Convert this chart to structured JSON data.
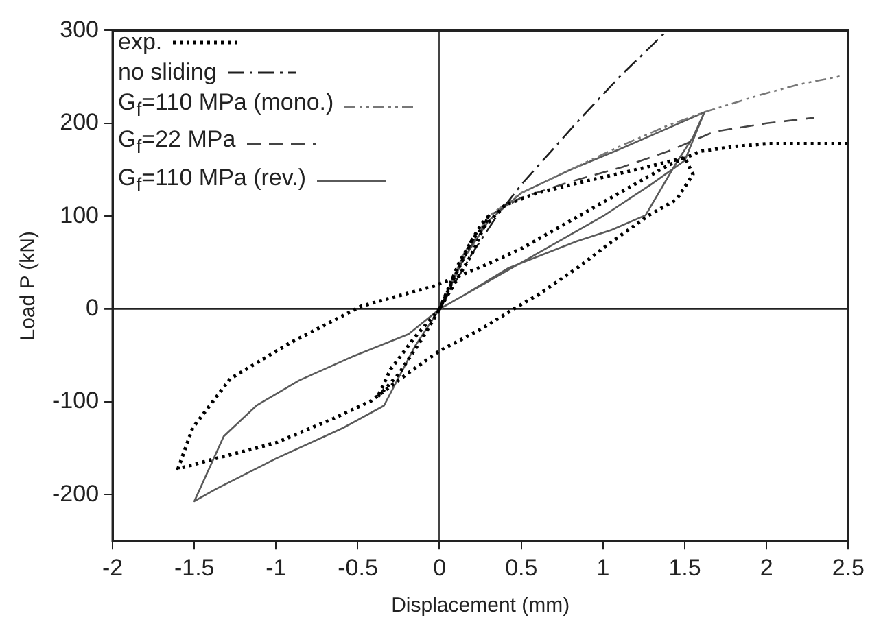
{
  "chart_data": {
    "type": "line",
    "xlabel": "Displacement (mm)",
    "ylabel": "Load P (kN)",
    "xlim": [
      -2,
      2.5
    ],
    "xticks": [
      -2,
      -1.5,
      -1,
      -0.5,
      0,
      0.5,
      1,
      1.5,
      2,
      2.5
    ],
    "ylim": [
      -250,
      300
    ],
    "yticks": [
      -200,
      -100,
      0,
      100,
      200,
      300
    ],
    "grid": false,
    "legend": "top left",
    "marker": "none",
    "ref_lines": [
      {
        "axis": "y",
        "value": 0,
        "color": "#222222"
      },
      {
        "axis": "x",
        "value": 0,
        "color": "#444444"
      }
    ],
    "series": [
      {
        "name": "exp.",
        "color": "#000000",
        "line_style": "dotted",
        "x": [
          0,
          0.12,
          0.25,
          0.3,
          0.2,
          0.05,
          -0.1,
          -0.25,
          -0.38,
          -0.3,
          -0.15,
          0,
          0.2,
          0.4,
          0.6,
          0.9,
          1.2,
          1.5,
          1.55,
          1.45,
          1.28,
          1.05,
          0.84,
          0.6,
          0.48,
          0.25,
          0,
          -0.2,
          -0.42,
          -0.65,
          -1.0,
          -1.37,
          -1.6,
          -1.51,
          -1.28,
          -0.92,
          -0.48,
          -0.03,
          0.25,
          0.5,
          0.8,
          1.1,
          1.4,
          1.6,
          1.8,
          2.0,
          2.2,
          2.5
        ],
        "values": [
          0,
          50,
          90,
          100,
          60,
          15,
          -30,
          -70,
          -95,
          -65,
          -30,
          0,
          75,
          112,
          125,
          138,
          150,
          163,
          145,
          118,
          101,
          72,
          44,
          15,
          3,
          -22,
          -45,
          -70,
          -99,
          -118,
          -144,
          -161,
          -172,
          -128,
          -75,
          -37,
          3,
          25,
          45,
          65,
          95,
          125,
          155,
          170,
          175,
          178,
          178,
          178
        ]
      },
      {
        "name": "no sliding",
        "color": "#1e1e1e",
        "line_style": "dashdot",
        "x": [
          0,
          0.2,
          0.35,
          0.5,
          0.84,
          1.1,
          1.34,
          1.38
        ],
        "values": [
          0,
          60,
          100,
          134,
          201,
          250,
          291,
          298
        ]
      },
      {
        "name": "G$_{f}$=110 MPa (mono.)",
        "color": "#777777",
        "line_style": "dashdotdot",
        "x": [
          0,
          0.15,
          0.3,
          0.5,
          0.8,
          1.1,
          1.4,
          1.62,
          1.95,
          2.2,
          2.46
        ],
        "values": [
          0,
          60,
          100,
          125,
          150,
          175,
          198,
          212,
          230,
          242,
          251
        ]
      },
      {
        "name": "G$_{f}$=22 MPa",
        "color": "#444444",
        "line_style": "dashed",
        "x": [
          0,
          0.15,
          0.3,
          0.5,
          0.8,
          1.12,
          1.4,
          1.68,
          2.0,
          2.29
        ],
        "values": [
          0,
          55,
          100,
          120,
          137,
          153,
          170,
          191,
          200,
          206
        ]
      },
      {
        "name": "G$_{f}$=110 MPa (rev.)",
        "color": "#5a5a5a",
        "line_style": "solid",
        "x": [
          0,
          0.15,
          0.3,
          0.5,
          0.8,
          1.1,
          1.4,
          1.62,
          1.55,
          1.45,
          1.26,
          1.05,
          0.84,
          0.42,
          0.15,
          0,
          -0.15,
          -0.34,
          -0.59,
          -1.0,
          -1.37,
          -1.5,
          -1.32,
          -1.12,
          -0.86,
          -0.53,
          -0.19,
          0,
          0.3,
          0.6,
          1.0,
          1.3,
          1.5,
          1.62
        ],
        "values": [
          0,
          55,
          95,
          125,
          150,
          172,
          195,
          212,
          185,
          158,
          101,
          85,
          73,
          44,
          15,
          0,
          -40,
          -104,
          -128,
          -161,
          -194,
          -207,
          -137,
          -104,
          -77,
          -51,
          -27,
          0,
          30,
          60,
          100,
          135,
          160,
          212
        ]
      }
    ]
  }
}
